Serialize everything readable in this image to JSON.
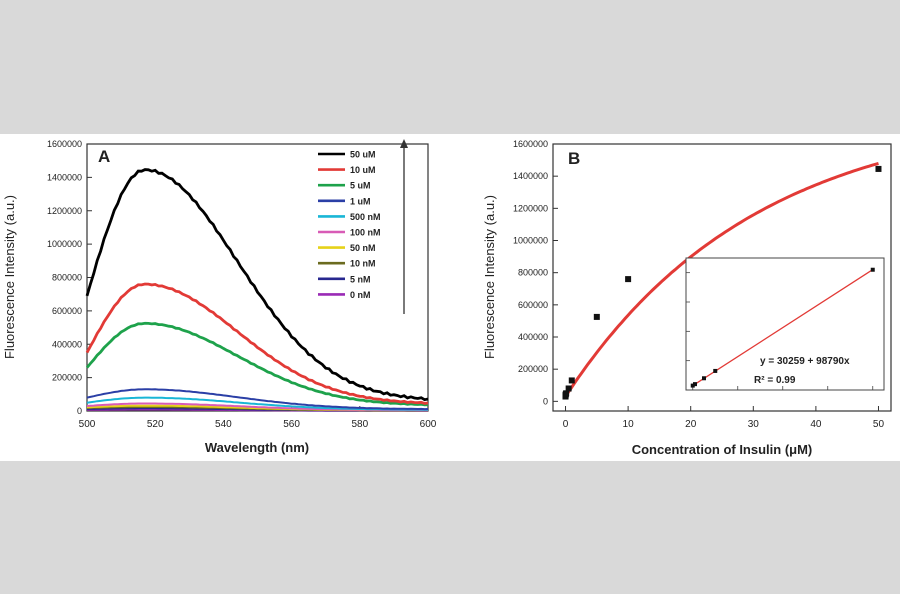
{
  "chart_data": [
    {
      "type": "line",
      "panel_label": "A",
      "xlabel": "Wavelength (nm)",
      "ylabel": "Fluorescence Intensity (a.u.)",
      "xlim": [
        500,
        600
      ],
      "ylim": [
        0,
        1600000
      ],
      "xticks": [
        500,
        520,
        540,
        560,
        580,
        600
      ],
      "xtick_labels": [
        "500",
        "520",
        "540",
        "560",
        "580",
        "600"
      ],
      "yticks": [
        0,
        200000,
        400000,
        600000,
        800000,
        1000000,
        1200000,
        1400000,
        1600000
      ],
      "ytick_labels": [
        "0",
        "200000",
        "400000",
        "600000",
        "800000",
        "1000000",
        "1200000",
        "1400000",
        "1600000"
      ],
      "legend_position": "top-right",
      "arrow_direction": "up",
      "peak_x": 517,
      "series": [
        {
          "name": "50 uM",
          "color": "#000000",
          "peak": 1445000,
          "start": 690000,
          "end": 72000
        },
        {
          "name": "10 uM",
          "color": "#e23a36",
          "peak": 760000,
          "start": 350000,
          "end": 48000
        },
        {
          "name": "5 uM",
          "color": "#1ea24b",
          "peak": 525000,
          "start": 260000,
          "end": 38000
        },
        {
          "name": "1 uM",
          "color": "#2b3fa6",
          "peak": 130000,
          "start": 80000,
          "end": 12000
        },
        {
          "name": "500 nM",
          "color": "#19b6d6",
          "peak": 80000,
          "start": 50000,
          "end": 8000
        },
        {
          "name": "100 nM",
          "color": "#d85bb6",
          "peak": 45000,
          "start": 30000,
          "end": 5000
        },
        {
          "name": "50 nM",
          "color": "#e6d21a",
          "peak": 32000,
          "start": 22000,
          "end": 4000
        },
        {
          "name": "10 nM",
          "color": "#6b6b1f",
          "peak": 24000,
          "start": 18000,
          "end": 3000
        },
        {
          "name": "5 nM",
          "color": "#28288f",
          "peak": 16000,
          "start": 12000,
          "end": 2000
        },
        {
          "name": "0 nM",
          "color": "#9a2ab5",
          "peak": 9000,
          "start": 7000,
          "end": 1000
        }
      ]
    },
    {
      "type": "scatter",
      "panel_label": "B",
      "xlabel": "Concentration of Insulin (μM)",
      "ylabel": "Fluorescence Intensity (a.u.)",
      "xlim": [
        -2,
        52
      ],
      "ylim": [
        -60000,
        1600000
      ],
      "xticks": [
        0,
        10,
        20,
        30,
        40,
        50
      ],
      "xtick_labels": [
        "0",
        "10",
        "20",
        "30",
        "40",
        "50"
      ],
      "yticks": [
        0,
        200000,
        400000,
        600000,
        800000,
        1000000,
        1200000,
        1400000,
        1600000
      ],
      "ytick_labels": [
        "0",
        "200000",
        "400000",
        "600000",
        "800000",
        "1000000",
        "1200000",
        "1400000",
        "1600000"
      ],
      "points": [
        {
          "x": 0,
          "y": 30000
        },
        {
          "x": 0.005,
          "y": 35000
        },
        {
          "x": 0.01,
          "y": 40000
        },
        {
          "x": 0.05,
          "y": 45000
        },
        {
          "x": 0.1,
          "y": 50000
        },
        {
          "x": 0.5,
          "y": 80000
        },
        {
          "x": 1,
          "y": 130000
        },
        {
          "x": 5,
          "y": 525000
        },
        {
          "x": 10,
          "y": 760000
        },
        {
          "x": 50,
          "y": 1445000
        }
      ],
      "fit": {
        "type": "saturation",
        "color": "#e23a36",
        "a": 1790000.0,
        "k": 0.0332
      },
      "inset": {
        "equation": "y = 30259 + 98790x",
        "r_squared": "R² = 0.99",
        "xticks": [
          0,
          2,
          4,
          6,
          8
        ],
        "yticks": [
          0,
          200000,
          400000,
          600000,
          800000
        ],
        "xlim": [
          -0.3,
          8.5
        ],
        "ylim": [
          0,
          900000
        ],
        "points": [
          {
            "x": 0,
            "y": 30000
          },
          {
            "x": 0.1,
            "y": 40000
          },
          {
            "x": 0.5,
            "y": 80000
          },
          {
            "x": 1,
            "y": 130000
          },
          {
            "x": 8,
            "y": 820000
          }
        ]
      }
    }
  ]
}
